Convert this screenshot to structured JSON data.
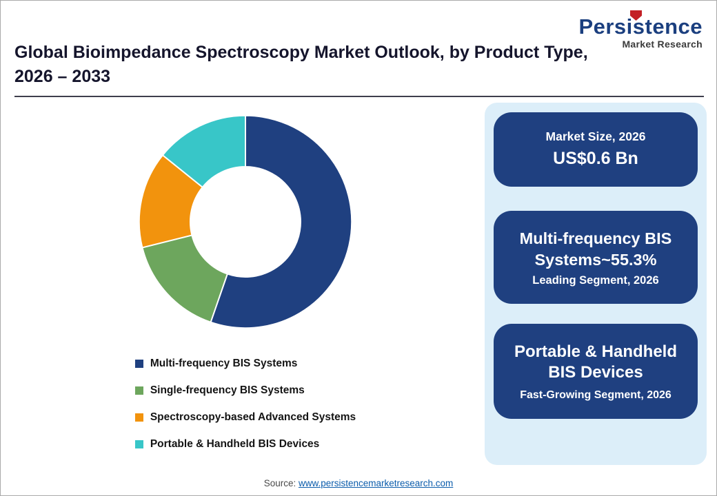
{
  "logo": {
    "name": "Persistence",
    "subtitle": "Market Research",
    "accent_color": "#C32026",
    "text_color": "#1B3F7F"
  },
  "header": {
    "title_line1": "Global Bioimpedance Spectroscopy Market Outlook, by Product Type,",
    "title_line2": "2026 – 2033"
  },
  "chart_data": {
    "type": "pie",
    "donut": true,
    "title": "Global Bioimpedance Spectroscopy Market Outlook, by Product Type, 2026 – 2033",
    "start_angle_deg": 0,
    "direction": "clockwise",
    "legend_position": "bottom-left",
    "segments": [
      {
        "label": "Multi-frequency BIS Systems",
        "value": 55.3,
        "color": "#1F4080"
      },
      {
        "label": "Single-frequency BIS Systems",
        "value": 15.8,
        "color": "#6DA65D"
      },
      {
        "label": "Spectroscopy-based Advanced Systems",
        "value": 14.7,
        "color": "#F2930D"
      },
      {
        "label": "Portable & Handheld BIS Devices",
        "value": 14.2,
        "color": "#38C6C8"
      }
    ]
  },
  "info_panel": {
    "panel_bg": "#DCEEF9",
    "card_bg": "#1F4080",
    "cards": [
      {
        "line1": "Market Size, 2026",
        "line2": "US$0.6 Bn"
      },
      {
        "line1": "Multi-frequency BIS Systems~55.3%",
        "line2": "Leading Segment, 2026"
      },
      {
        "line1": "Portable & Handheld BIS Devices",
        "line2": "Fast-Growing Segment, 2026"
      }
    ]
  },
  "footer": {
    "source_label": "Source: ",
    "source_link": "www.persistencemarketresearch.com"
  }
}
